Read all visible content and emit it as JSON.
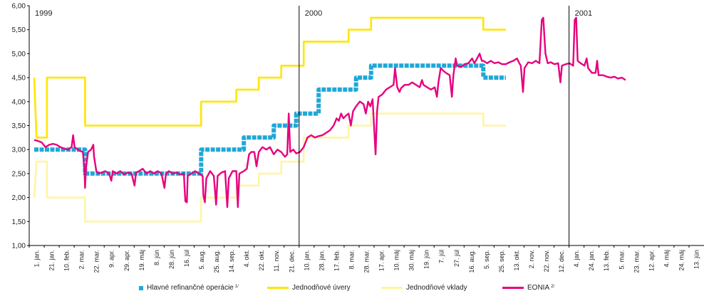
{
  "chart_data": {
    "type": "line",
    "title": "",
    "xlabel": "",
    "ylabel": "",
    "ylim": [
      1.0,
      6.0
    ],
    "y_ticks": [
      "6,00",
      "5,50",
      "5,00",
      "4,50",
      "4,00",
      "3,50",
      "3,00",
      "2,50",
      "2,00",
      "1,50",
      "1,00"
    ],
    "x_ticks": [
      "1. jan.",
      "21. jan.",
      "10. feb.",
      "2. mar.",
      "22. mar.",
      "9. apr.",
      "29. apr.",
      "19. máj",
      "8. jún",
      "28. jún",
      "16. júl",
      "5. aug.",
      "25. aug.",
      "14. sep.",
      "4. okt.",
      "22. okt.",
      "11. nov.",
      "21. dec.",
      "10. jan.",
      "28. jan.",
      "17. feb.",
      "8. mar.",
      "28. mar.",
      "17. apr.",
      "10. máj",
      "30. máj",
      "19. jún",
      "7. júl",
      "27. júl",
      "16. aug.",
      "5. sep.",
      "25. sep.",
      "13. okt.",
      "2. nov.",
      "22. nov.",
      "12. dec.",
      "4. jan.",
      "24. jan.",
      "13. feb.",
      "5. mar.",
      "23. mar.",
      "12. apr.",
      "4. máj",
      "24. máj",
      "13. jún"
    ],
    "year_labels": [
      "1999",
      "2000",
      "2001"
    ],
    "year_start_tick_index": [
      0,
      18,
      36
    ],
    "grid": false,
    "legend_position": "bottom",
    "series": [
      {
        "name": "Hlavné refinančné operácie",
        "note": "1/",
        "color": "#1fa8d8",
        "style": "dashed-thick",
        "points": [
          [
            0,
            3.0
          ],
          [
            6.8,
            3.0
          ],
          [
            6.8,
            2.5
          ],
          [
            22.3,
            2.5
          ],
          [
            22.3,
            3.0
          ],
          [
            28,
            3.0
          ],
          [
            28,
            3.25
          ],
          [
            32,
            3.25
          ],
          [
            32,
            3.5
          ],
          [
            35,
            3.5
          ],
          [
            35,
            3.75
          ],
          [
            38,
            3.75
          ],
          [
            38,
            4.25
          ],
          [
            43,
            4.25
          ],
          [
            43,
            4.5
          ],
          [
            45,
            4.5
          ],
          [
            45,
            4.75
          ],
          [
            60,
            4.75
          ],
          [
            60,
            4.5
          ],
          [
            63,
            4.5
          ]
        ]
      },
      {
        "name": "Jednodňové úvery",
        "note": "",
        "color": "#ffe600",
        "style": "solid",
        "points": [
          [
            0,
            4.5
          ],
          [
            0.3,
            3.25
          ],
          [
            1.7,
            3.25
          ],
          [
            1.7,
            4.5
          ],
          [
            6.8,
            4.5
          ],
          [
            6.8,
            3.5
          ],
          [
            22.3,
            3.5
          ],
          [
            22.3,
            4.0
          ],
          [
            27,
            4.0
          ],
          [
            27,
            4.25
          ],
          [
            30,
            4.25
          ],
          [
            30,
            4.5
          ],
          [
            33,
            4.5
          ],
          [
            33,
            4.75
          ],
          [
            36,
            4.75
          ],
          [
            36,
            5.25
          ],
          [
            42,
            5.25
          ],
          [
            42,
            5.5
          ],
          [
            45,
            5.5
          ],
          [
            45,
            5.75
          ],
          [
            60,
            5.75
          ],
          [
            60,
            5.5
          ],
          [
            63,
            5.5
          ]
        ]
      },
      {
        "name": "Jednodňové vklady",
        "note": "",
        "color": "#fff5a0",
        "style": "solid",
        "points": [
          [
            0,
            2.0
          ],
          [
            0.3,
            2.75
          ],
          [
            1.7,
            2.75
          ],
          [
            1.7,
            2.0
          ],
          [
            6.8,
            2.0
          ],
          [
            6.8,
            1.5
          ],
          [
            22.3,
            1.5
          ],
          [
            22.3,
            2.0
          ],
          [
            27,
            2.0
          ],
          [
            27,
            2.25
          ],
          [
            30,
            2.25
          ],
          [
            30,
            2.5
          ],
          [
            33,
            2.5
          ],
          [
            33,
            2.75
          ],
          [
            36,
            2.75
          ],
          [
            36,
            3.25
          ],
          [
            42,
            3.25
          ],
          [
            42,
            3.5
          ],
          [
            45,
            3.5
          ],
          [
            45,
            3.75
          ],
          [
            60,
            3.75
          ],
          [
            60,
            3.5
          ],
          [
            63,
            3.5
          ]
        ]
      },
      {
        "name": "EONIA",
        "note": "2/",
        "color": "#e6007e",
        "style": "solid",
        "points": [
          [
            0,
            3.2
          ],
          [
            0.5,
            3.18
          ],
          [
            1,
            3.15
          ],
          [
            1.5,
            3.05
          ],
          [
            2,
            3.1
          ],
          [
            2.5,
            3.12
          ],
          [
            3,
            3.1
          ],
          [
            3.5,
            3.05
          ],
          [
            4,
            3.02
          ],
          [
            4.5,
            3.0
          ],
          [
            5,
            3.05
          ],
          [
            5.2,
            3.3
          ],
          [
            5.4,
            3.05
          ],
          [
            6,
            2.98
          ],
          [
            6.5,
            2.95
          ],
          [
            6.7,
            2.6
          ],
          [
            6.8,
            2.2
          ],
          [
            6.9,
            2.6
          ],
          [
            7.2,
            2.95
          ],
          [
            7.6,
            3.0
          ],
          [
            7.9,
            3.1
          ],
          [
            8.0,
            2.85
          ],
          [
            8.3,
            2.55
          ],
          [
            8.6,
            2.5
          ],
          [
            9.0,
            2.52
          ],
          [
            9.5,
            2.55
          ],
          [
            10,
            2.5
          ],
          [
            10.3,
            2.35
          ],
          [
            10.5,
            2.55
          ],
          [
            11,
            2.5
          ],
          [
            11.5,
            2.55
          ],
          [
            12,
            2.48
          ],
          [
            12.5,
            2.52
          ],
          [
            13,
            2.5
          ],
          [
            13.4,
            2.25
          ],
          [
            13.6,
            2.52
          ],
          [
            14,
            2.55
          ],
          [
            14.5,
            2.6
          ],
          [
            15,
            2.5
          ],
          [
            15.5,
            2.55
          ],
          [
            16,
            2.5
          ],
          [
            16.5,
            2.55
          ],
          [
            17,
            2.5
          ],
          [
            17.4,
            2.2
          ],
          [
            17.6,
            2.5
          ],
          [
            18,
            2.55
          ],
          [
            18.5,
            2.5
          ],
          [
            19,
            2.52
          ],
          [
            19.5,
            2.48
          ],
          [
            20,
            2.5
          ],
          [
            20.1,
            2.15
          ],
          [
            20.2,
            1.92
          ],
          [
            20.4,
            1.9
          ],
          [
            20.5,
            2.45
          ],
          [
            21,
            2.5
          ],
          [
            21.5,
            2.55
          ],
          [
            22,
            2.5
          ],
          [
            22.5,
            2.45
          ],
          [
            22.6,
            2.05
          ],
          [
            22.8,
            1.9
          ],
          [
            23.0,
            2.4
          ],
          [
            23.5,
            2.55
          ],
          [
            24,
            2.45
          ],
          [
            24.3,
            1.85
          ],
          [
            24.5,
            2.45
          ],
          [
            25,
            2.52
          ],
          [
            25.5,
            2.55
          ],
          [
            25.8,
            1.8
          ],
          [
            26.0,
            2.4
          ],
          [
            26.5,
            2.55
          ],
          [
            27,
            2.55
          ],
          [
            27.2,
            1.8
          ],
          [
            27.4,
            2.5
          ],
          [
            28,
            2.55
          ],
          [
            28.4,
            2.6
          ],
          [
            28.7,
            2.9
          ],
          [
            29,
            2.95
          ],
          [
            29.4,
            2.95
          ],
          [
            29.7,
            2.65
          ],
          [
            30.0,
            2.95
          ],
          [
            30.5,
            3.05
          ],
          [
            31,
            3.0
          ],
          [
            31.5,
            3.05
          ],
          [
            32,
            2.9
          ],
          [
            32.5,
            3.0
          ],
          [
            33,
            2.95
          ],
          [
            33.5,
            2.85
          ],
          [
            33.8,
            2.9
          ],
          [
            34.0,
            3.75
          ],
          [
            34.2,
            2.95
          ],
          [
            34.6,
            3.0
          ],
          [
            35,
            2.92
          ],
          [
            35.5,
            2.95
          ],
          [
            36,
            3.05
          ],
          [
            36.5,
            3.25
          ],
          [
            37,
            3.3
          ],
          [
            37.5,
            3.25
          ],
          [
            38,
            3.28
          ],
          [
            38.5,
            3.3
          ],
          [
            39,
            3.35
          ],
          [
            39.5,
            3.4
          ],
          [
            40,
            3.5
          ],
          [
            40.4,
            3.65
          ],
          [
            40.7,
            3.6
          ],
          [
            41,
            3.75
          ],
          [
            41.3,
            3.65
          ],
          [
            41.6,
            3.7
          ],
          [
            42,
            3.75
          ],
          [
            42.3,
            3.5
          ],
          [
            42.6,
            3.8
          ],
          [
            43,
            3.9
          ],
          [
            43.5,
            4.0
          ],
          [
            44,
            3.95
          ],
          [
            44.3,
            3.75
          ],
          [
            44.6,
            4.0
          ],
          [
            44.9,
            3.9
          ],
          [
            45.2,
            4.05
          ],
          [
            45.6,
            2.9
          ],
          [
            45.8,
            3.8
          ],
          [
            46,
            4.1
          ],
          [
            46.5,
            4.15
          ],
          [
            47,
            4.25
          ],
          [
            47.5,
            4.3
          ],
          [
            48,
            4.35
          ],
          [
            48.2,
            4.7
          ],
          [
            48.5,
            4.3
          ],
          [
            48.8,
            4.2
          ],
          [
            49,
            4.28
          ],
          [
            49.5,
            4.35
          ],
          [
            50,
            4.35
          ],
          [
            50.5,
            4.4
          ],
          [
            51,
            4.35
          ],
          [
            51.5,
            4.3
          ],
          [
            51.8,
            4.45
          ],
          [
            52,
            4.35
          ],
          [
            52.5,
            4.3
          ],
          [
            53,
            4.25
          ],
          [
            53.5,
            4.3
          ],
          [
            53.8,
            4.1
          ],
          [
            54.0,
            4.4
          ],
          [
            54.3,
            4.7
          ],
          [
            54.6,
            4.65
          ],
          [
            55,
            4.6
          ],
          [
            55.5,
            4.55
          ],
          [
            55.8,
            4.1
          ],
          [
            56,
            4.55
          ],
          [
            56.3,
            4.9
          ],
          [
            56.5,
            4.75
          ],
          [
            57,
            4.72
          ],
          [
            57.5,
            4.78
          ],
          [
            58,
            4.8
          ],
          [
            58.5,
            4.9
          ],
          [
            58.8,
            4.8
          ],
          [
            59,
            4.85
          ],
          [
            59.5,
            5.0
          ],
          [
            59.8,
            4.85
          ],
          [
            60,
            4.85
          ],
          [
            60.5,
            4.8
          ],
          [
            61,
            4.85
          ],
          [
            61.5,
            4.8
          ],
          [
            62,
            4.82
          ],
          [
            62.5,
            4.78
          ],
          [
            63,
            4.78
          ],
          [
            63.5,
            4.82
          ],
          [
            64,
            4.85
          ],
          [
            64.5,
            4.9
          ],
          [
            64.8,
            4.8
          ],
          [
            65,
            4.75
          ],
          [
            65.3,
            4.2
          ],
          [
            65.5,
            4.7
          ],
          [
            66,
            4.82
          ],
          [
            66.5,
            4.8
          ],
          [
            67,
            4.85
          ],
          [
            67.5,
            4.8
          ],
          [
            67.8,
            5.7
          ],
          [
            68,
            5.75
          ],
          [
            68.3,
            5.0
          ],
          [
            68.6,
            4.8
          ],
          [
            69,
            4.82
          ],
          [
            69.5,
            4.78
          ],
          [
            70,
            4.8
          ],
          [
            70.3,
            4.4
          ],
          [
            70.5,
            4.75
          ],
          [
            71,
            4.78
          ],
          [
            71.5,
            4.8
          ],
          [
            72,
            4.75
          ],
          [
            72.2,
            5.7
          ],
          [
            72.4,
            5.75
          ],
          [
            72.6,
            4.85
          ],
          [
            73,
            4.8
          ],
          [
            73.5,
            4.75
          ],
          [
            73.8,
            4.9
          ],
          [
            74,
            4.7
          ],
          [
            74.5,
            4.6
          ],
          [
            75,
            4.6
          ],
          [
            75.2,
            4.85
          ],
          [
            75.4,
            4.55
          ],
          [
            76,
            4.55
          ],
          [
            76.5,
            4.52
          ],
          [
            77,
            4.5
          ],
          [
            77.5,
            4.52
          ],
          [
            78,
            4.48
          ],
          [
            78.5,
            4.5
          ],
          [
            79,
            4.45
          ]
        ]
      }
    ]
  }
}
